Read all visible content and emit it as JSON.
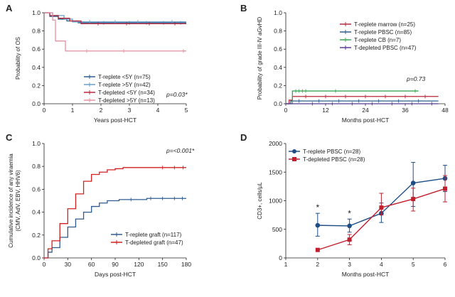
{
  "chart_data": [
    {
      "panel": "A",
      "type": "line",
      "xlabel": "Years post-HCT",
      "ylabel": "Probability of OS",
      "xlim": [
        0,
        5
      ],
      "ylim": [
        0,
        1.0
      ],
      "xticks": [
        "0",
        "1",
        "2",
        "3",
        "4",
        "5"
      ],
      "yticks": [
        "0.0",
        "0.2",
        "0.4",
        "0.6",
        "0.8",
        "1.0"
      ],
      "legend_position": "bottom-right",
      "annotation": "p=0.03*",
      "series": [
        {
          "name": "T-replete <5Y (n=75)",
          "color": "#2e5c8f",
          "step": [
            [
              0,
              1.0
            ],
            [
              0.2,
              0.96
            ],
            [
              0.5,
              0.93
            ],
            [
              0.8,
              0.91
            ],
            [
              1.2,
              0.89
            ],
            [
              5,
              0.89
            ]
          ],
          "ticks": [
            2.1,
            3.0,
            3.6,
            4.2,
            4.8
          ]
        },
        {
          "name": "T-replete >5Y (n=42)",
          "color": "#6a9ec9",
          "step": [
            [
              0,
              1.0
            ],
            [
              0.3,
              0.97
            ],
            [
              0.7,
              0.93
            ],
            [
              1.0,
              0.9
            ],
            [
              5,
              0.9
            ]
          ],
          "ticks": [
            1.6,
            2.5,
            3.3,
            4.5
          ]
        },
        {
          "name": "T-depleted <5Y (n=34)",
          "color": "#b8283a",
          "step": [
            [
              0,
              1.0
            ],
            [
              0.2,
              0.97
            ],
            [
              0.5,
              0.94
            ],
            [
              0.9,
              0.91
            ],
            [
              1.3,
              0.88
            ],
            [
              5,
              0.88
            ]
          ],
          "ticks": [
            1.9,
            2.9,
            3.7,
            4.6
          ]
        },
        {
          "name": "T-depleted >5Y (n=13)",
          "color": "#e8909e",
          "step": [
            [
              0,
              1.0
            ],
            [
              0.3,
              0.92
            ],
            [
              0.4,
              0.69
            ],
            [
              0.7,
              0.69
            ],
            [
              0.75,
              0.58
            ],
            [
              5,
              0.58
            ]
          ],
          "ticks": [
            1.5,
            2.8,
            4.9
          ]
        }
      ]
    },
    {
      "panel": "B",
      "type": "line",
      "xlabel": "Months post-HCT",
      "ylabel": "Probability of grade III-IV aGvHD",
      "xlim": [
        0,
        48
      ],
      "ylim": [
        0,
        1.0
      ],
      "xticks": [
        "0",
        "12",
        "24",
        "36",
        "48"
      ],
      "yticks": [
        "0.0",
        "0.2",
        "0.4",
        "0.6",
        "0.8",
        "1.0"
      ],
      "legend_position": "top-right",
      "annotation": "p=0.73",
      "series": [
        {
          "name": "T-replete marrow (n=25)",
          "color": "#b8283a",
          "step": [
            [
              0,
              0
            ],
            [
              1,
              0.04
            ],
            [
              2,
              0.08
            ],
            [
              46,
              0.08
            ]
          ],
          "ticks": [
            6,
            12,
            18,
            24,
            30,
            36,
            42
          ]
        },
        {
          "name": "T-replete PBSC (n=85)",
          "color": "#2e5c8f",
          "step": [
            [
              0,
              0
            ],
            [
              1.5,
              0.03
            ],
            [
              46,
              0.03
            ]
          ],
          "ticks": [
            4,
            10,
            16,
            22,
            28,
            34,
            40
          ]
        },
        {
          "name": "T-replete CB (n=7)",
          "color": "#3aa655",
          "step": [
            [
              0,
              0
            ],
            [
              2,
              0.14
            ],
            [
              40,
              0.14
            ]
          ],
          "ticks": [
            3,
            4,
            5,
            6,
            15,
            39
          ]
        },
        {
          "name": "T-depleted PBSC (n=47)",
          "color": "#5b3a96",
          "step": [
            [
              0,
              0
            ],
            [
              46,
              0.0
            ]
          ],
          "ticks": [
            8,
            14,
            20,
            26,
            32,
            38,
            44
          ]
        }
      ]
    },
    {
      "panel": "C",
      "type": "line",
      "xlabel": "Days post-HCT",
      "ylabel": "Cumulative incidence of any viraemia (CMV, AdV, EBV, HHV6)",
      "xlim": [
        0,
        180
      ],
      "ylim": [
        0,
        1.0
      ],
      "xticks": [
        "0",
        "30",
        "60",
        "90",
        "120",
        "150",
        "180"
      ],
      "yticks": [
        "0.0",
        "0.2",
        "0.4",
        "0.6",
        "0.8",
        "1.0"
      ],
      "legend_position": "bottom-right",
      "annotation": "p=<0.001*",
      "series": [
        {
          "name": "T-replete graft (n=117)",
          "color": "#2e5c8f",
          "step": [
            [
              0,
              0
            ],
            [
              5,
              0.05
            ],
            [
              10,
              0.09
            ],
            [
              20,
              0.18
            ],
            [
              30,
              0.27
            ],
            [
              40,
              0.34
            ],
            [
              50,
              0.4
            ],
            [
              60,
              0.45
            ],
            [
              70,
              0.48
            ],
            [
              80,
              0.5
            ],
            [
              95,
              0.51
            ],
            [
              130,
              0.52
            ],
            [
              180,
              0.52
            ]
          ],
          "ticks": [
            110,
            135,
            150,
            165,
            175
          ]
        },
        {
          "name": "T-depleted graft (n=47)",
          "color": "#d42020",
          "step": [
            [
              0,
              0
            ],
            [
              5,
              0.08
            ],
            [
              10,
              0.15
            ],
            [
              20,
              0.3
            ],
            [
              30,
              0.43
            ],
            [
              40,
              0.56
            ],
            [
              50,
              0.67
            ],
            [
              60,
              0.73
            ],
            [
              70,
              0.75
            ],
            [
              80,
              0.77
            ],
            [
              90,
              0.78
            ],
            [
              100,
              0.79
            ],
            [
              180,
              0.79
            ]
          ],
          "ticks": [
            150,
            165,
            176
          ]
        }
      ]
    },
    {
      "panel": "D",
      "type": "line",
      "xlabel": "Months post-HCT",
      "ylabel": "CD3+, cells/µL",
      "xlim": [
        1,
        6
      ],
      "ylim": [
        0,
        2000
      ],
      "xticks": [
        "1",
        "2",
        "3",
        "4",
        "5",
        "6"
      ],
      "yticks": [
        "0",
        "500",
        "1000",
        "1500",
        "2000"
      ],
      "legend_position": "top-left",
      "annotations": [
        {
          "x": 2,
          "text": "*"
        },
        {
          "x": 3,
          "text": "*"
        }
      ],
      "series": [
        {
          "name": "T-replete PBSC (n=28)",
          "color": "#1f4e86",
          "marker": "circle",
          "x": [
            2,
            3,
            4,
            5,
            6
          ],
          "values": [
            570,
            560,
            780,
            1310,
            1390
          ],
          "err_low": [
            380,
            450,
            620,
            900,
            1160
          ],
          "err_high": [
            780,
            680,
            960,
            1670,
            1620
          ]
        },
        {
          "name": "T-depleted PBSC (n=28)",
          "color": "#c0202d",
          "marker": "square",
          "x": [
            2,
            3,
            4,
            5,
            6
          ],
          "values": [
            140,
            320,
            880,
            1030,
            1210
          ],
          "err_low": [
            140,
            230,
            750,
            820,
            980
          ],
          "err_high": [
            140,
            410,
            1130,
            1220,
            1440
          ]
        }
      ]
    }
  ]
}
